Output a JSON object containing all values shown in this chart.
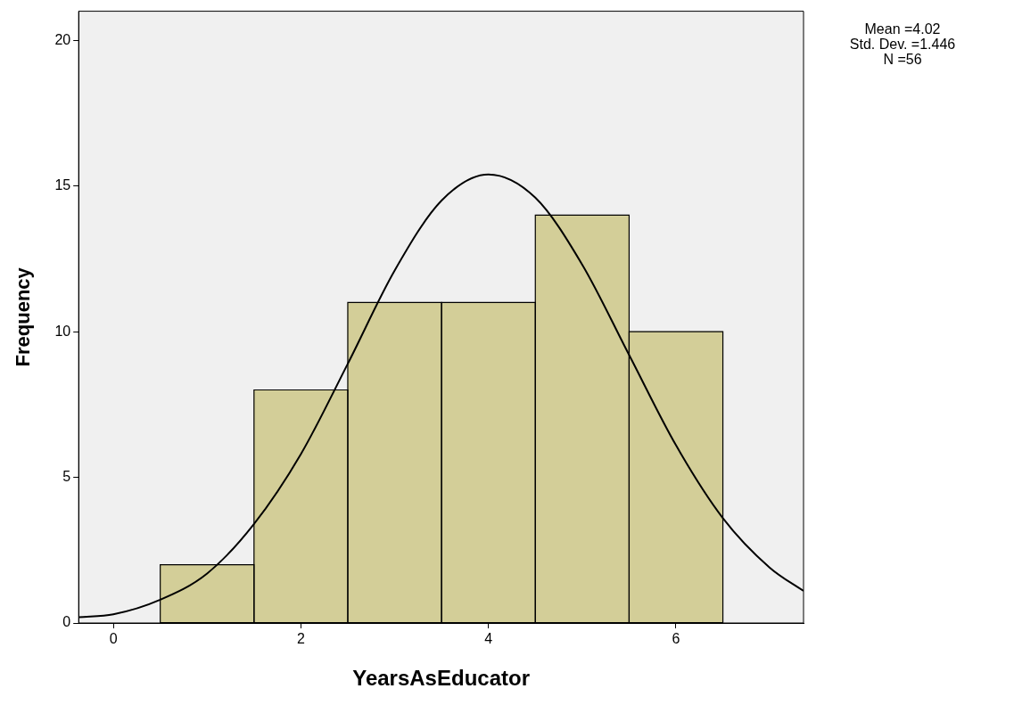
{
  "chart_data": {
    "type": "histogram",
    "xlabel": "YearsAsEducator",
    "ylabel": "Frequency",
    "xlim": [
      -0.37,
      7.36
    ],
    "xticks": [
      0,
      2,
      4,
      6
    ],
    "ylim": [
      0,
      21
    ],
    "yticks": [
      0,
      5,
      10,
      15,
      20
    ],
    "legend": false,
    "marker": "none",
    "annotations": [
      "Mean =4.02",
      "Std. Dev. =1.446",
      "N =56"
    ],
    "series": [
      {
        "color": "#d3ce98",
        "bins": [
          0.5,
          1.5,
          2.5,
          3.5,
          4.5,
          5.5,
          6.5
        ],
        "values": [
          2,
          8,
          11,
          11,
          14,
          10
        ]
      },
      {
        "type": "line",
        "color": "#000000",
        "x": [
          -0.37,
          0,
          0.5,
          1,
          1.5,
          2,
          2.5,
          3,
          3.5,
          4,
          4.5,
          5,
          5.5,
          6,
          6.5,
          7,
          7.36
        ],
        "values": [
          0.2,
          0.3,
          0.8,
          1.7,
          3.4,
          5.8,
          8.9,
          12.1,
          14.5,
          15.4,
          14.6,
          12.3,
          9.2,
          6.1,
          3.6,
          1.9,
          1.1
        ]
      }
    ]
  }
}
